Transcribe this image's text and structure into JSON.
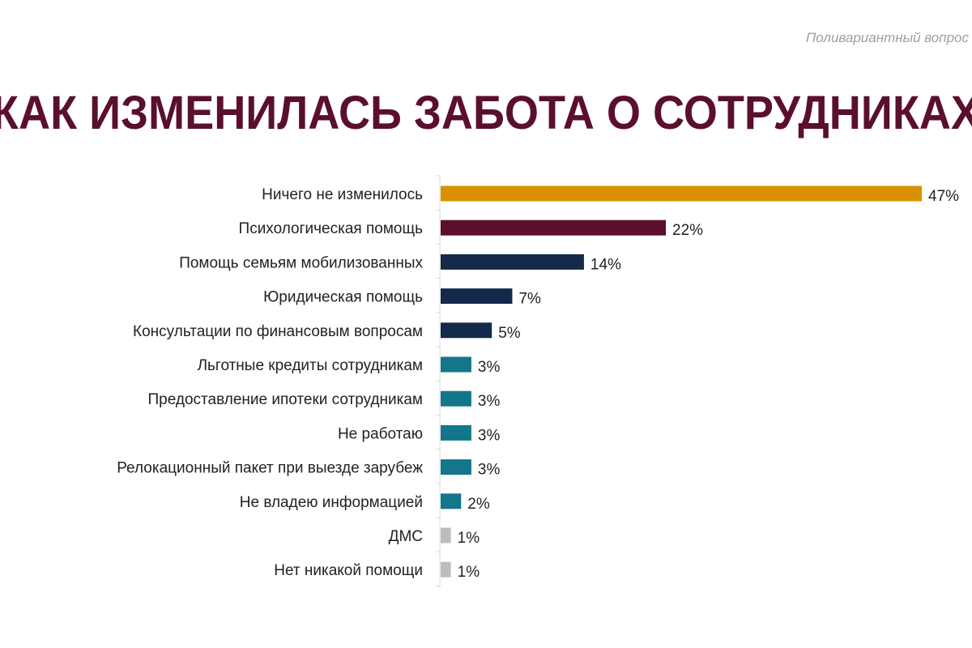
{
  "subtitle": "Поливариантный вопрос",
  "title": "КАК ИЗМЕНИЛАСЬ ЗАБОТА О СОТРУДНИКАХ",
  "chart_data": {
    "type": "bar",
    "orientation": "horizontal",
    "title": "КАК ИЗМЕНИЛАСЬ ЗАБОТА О СОТРУДНИКАХ",
    "xlabel": "",
    "ylabel": "",
    "xlim": [
      0,
      47
    ],
    "grid": false,
    "categories": [
      "Ничего не изменилось",
      "Психологическая помощь",
      "Помощь семьям мобилизованных",
      "Юридическая помощь",
      "Консультации по финансовым вопросам",
      "Льготные кредиты сотрудникам",
      "Предоставление ипотеки сотрудникам",
      "Не работаю",
      "Релокационный пакет при выезде зарубеж",
      "Не владею информацией",
      "ДМС",
      "Нет никакой помощи"
    ],
    "values": [
      47,
      22,
      14,
      7,
      5,
      3,
      3,
      3,
      3,
      2,
      1,
      1
    ],
    "labels": [
      "47%",
      "22%",
      "14%",
      "7%",
      "5%",
      "3%",
      "3%",
      "3%",
      "3%",
      "2%",
      "1%",
      "1%"
    ],
    "colors": [
      "#d99100",
      "#5a0f2e",
      "#13294a",
      "#13294a",
      "#13294a",
      "#13768a",
      "#13768a",
      "#13768a",
      "#13768a",
      "#13768a",
      "#bdbdbd",
      "#bdbdbd"
    ]
  }
}
